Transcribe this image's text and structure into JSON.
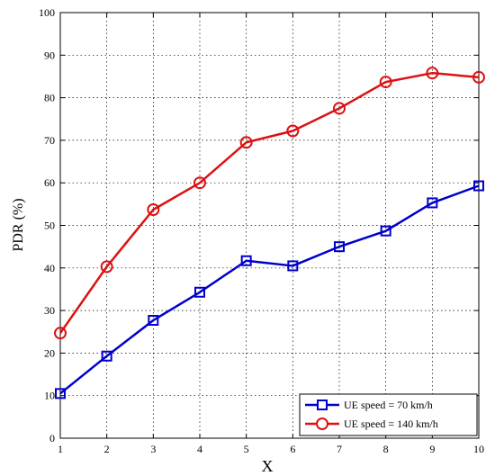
{
  "chart_data": {
    "type": "line",
    "xlabel": "X",
    "ylabel": "PDR (%)",
    "x": [
      1,
      2,
      3,
      4,
      5,
      6,
      7,
      8,
      9,
      10
    ],
    "xlim": [
      1,
      10
    ],
    "ylim": [
      0,
      100
    ],
    "yticks": [
      0,
      10,
      20,
      30,
      40,
      50,
      60,
      70,
      80,
      90,
      100
    ],
    "grid": true,
    "grid_style": "dotted",
    "legend_position": "bottom-right",
    "series": [
      {
        "name": "UE speed = 70 km/h",
        "color": "#0000cc",
        "marker": "square",
        "values": [
          10.5,
          19.3,
          27.7,
          34.3,
          41.7,
          40.5,
          45.0,
          48.7,
          55.3,
          59.3
        ]
      },
      {
        "name": "UE speed = 140 km/h",
        "color": "#dd1111",
        "marker": "circle",
        "values": [
          24.7,
          40.3,
          53.7,
          60.0,
          69.5,
          72.2,
          77.5,
          83.7,
          85.8,
          84.8
        ]
      }
    ]
  }
}
